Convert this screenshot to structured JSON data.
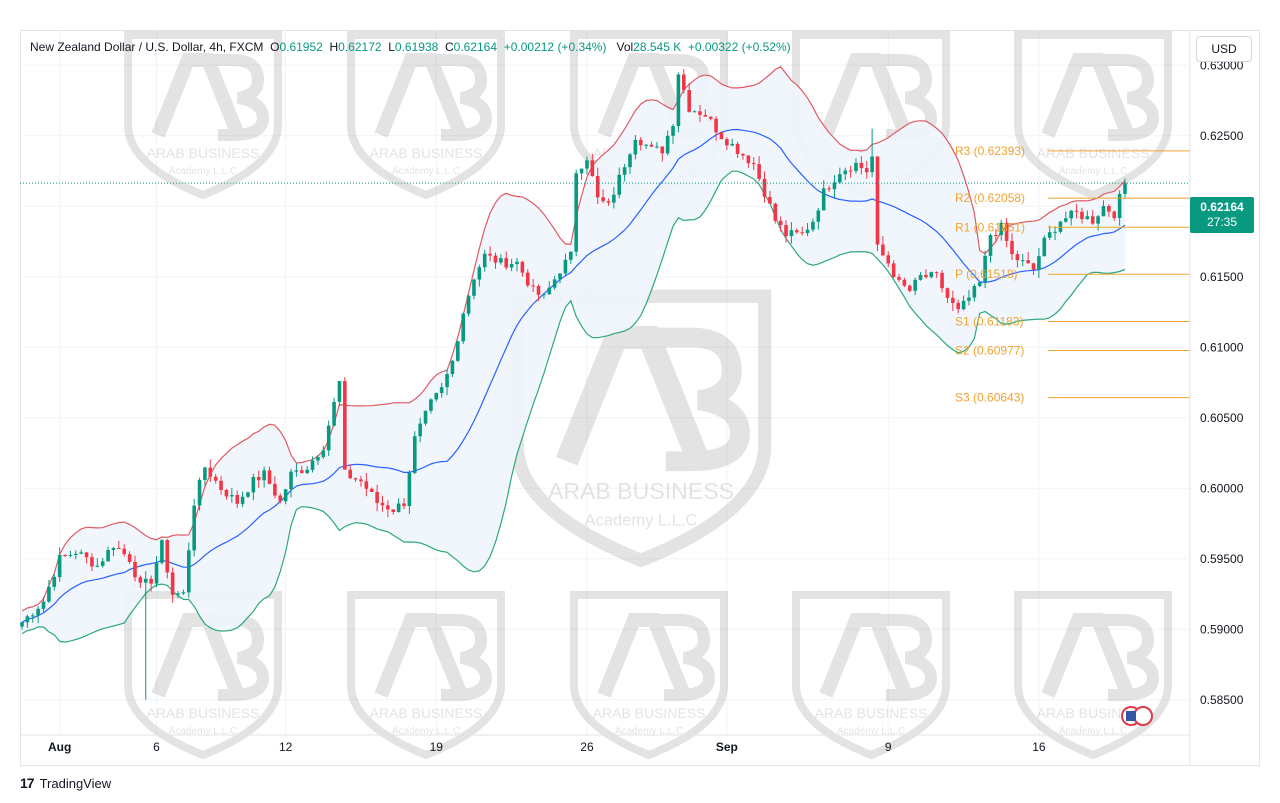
{
  "header": {
    "symbol": "New Zealand Dollar / U.S. Dollar, 4h, FXCM",
    "open_label": "O",
    "open": "0.61952",
    "high_label": "H",
    "high": "0.62172",
    "low_label": "L",
    "low": "0.61938",
    "close_label": "C",
    "close": "0.62164",
    "change": "+0.00212 (+0.34%)",
    "vol_label": "Vol",
    "vol": "28.545 K",
    "vol_change": "+0.00322 (+0.52%)"
  },
  "currency_button": "USD",
  "price_tag": {
    "price": "0.62164",
    "countdown": "27:35"
  },
  "footer": {
    "brand": "TradingView"
  },
  "watermark": {
    "line1": "ARAB BUSINESS",
    "line2": "Academy L.L.C"
  },
  "colors": {
    "up": "#089981",
    "down": "#f23645",
    "upper_band": "#e05a63",
    "lower_band": "#2ea87a",
    "basis": "#2962ff",
    "pivot": "#f0a330",
    "band_fill": "#eef5fc"
  },
  "chart_data": {
    "type": "candlestick",
    "timeframe": "4h",
    "ylim": [
      0.5825,
      0.6325
    ],
    "x_ticks": [
      {
        "label": "Aug",
        "i": 7
      },
      {
        "label": "6",
        "i": 25
      },
      {
        "label": "12",
        "i": 49
      },
      {
        "label": "19",
        "i": 77
      },
      {
        "label": "26",
        "i": 105
      },
      {
        "label": "Sep",
        "i": 131
      },
      {
        "label": "9",
        "i": 161
      },
      {
        "label": "16",
        "i": 189
      }
    ],
    "y_ticks": [
      "0.63000",
      "0.62500",
      "0.62000",
      "0.61500",
      "0.61000",
      "0.60500",
      "0.60000",
      "0.59500",
      "0.59000",
      "0.58500"
    ],
    "pivots": [
      {
        "label": "R3",
        "value": 0.62393,
        "text": "R3 (0.62393)"
      },
      {
        "label": "R2",
        "value": 0.62058,
        "text": "R2 (0.62058)"
      },
      {
        "label": "R1",
        "value": 0.61851,
        "text": "R1 (0.61851)"
      },
      {
        "label": "P",
        "value": 0.61518,
        "text": "P (0.61518)"
      },
      {
        "label": "S1",
        "value": 0.61183,
        "text": "S1 (0.61183)"
      },
      {
        "label": "S2",
        "value": 0.60977,
        "text": "S2 (0.60977)"
      },
      {
        "label": "S3",
        "value": 0.60643,
        "text": "S3 (0.60643)"
      }
    ],
    "current_price": 0.62164,
    "anchors": [
      [
        0,
        0.5905
      ],
      [
        4,
        0.592
      ],
      [
        7,
        0.595
      ],
      [
        10,
        0.5955
      ],
      [
        14,
        0.5945
      ],
      [
        17,
        0.596
      ],
      [
        20,
        0.595
      ],
      [
        22,
        0.593
      ],
      [
        24,
        0.5935
      ],
      [
        26,
        0.596
      ],
      [
        28,
        0.5925
      ],
      [
        30,
        0.5925
      ],
      [
        32,
        0.599
      ],
      [
        34,
        0.6015
      ],
      [
        37,
        0.6
      ],
      [
        40,
        0.599
      ],
      [
        43,
        0.6005
      ],
      [
        45,
        0.601
      ],
      [
        48,
        0.599
      ],
      [
        50,
        0.601
      ],
      [
        53,
        0.6015
      ],
      [
        56,
        0.603
      ],
      [
        58,
        0.606
      ],
      [
        59,
        0.6075
      ],
      [
        60,
        0.601
      ],
      [
        63,
        0.6005
      ],
      [
        66,
        0.599
      ],
      [
        69,
        0.5985
      ],
      [
        71,
        0.599
      ],
      [
        73,
        0.6035
      ],
      [
        76,
        0.606
      ],
      [
        78,
        0.607
      ],
      [
        80,
        0.609
      ],
      [
        82,
        0.6125
      ],
      [
        84,
        0.615
      ],
      [
        86,
        0.6165
      ],
      [
        89,
        0.616
      ],
      [
        92,
        0.616
      ],
      [
        95,
        0.614
      ],
      [
        97,
        0.6135
      ],
      [
        100,
        0.6155
      ],
      [
        102,
        0.6165
      ],
      [
        103,
        0.6225
      ],
      [
        105,
        0.6235
      ],
      [
        107,
        0.6205
      ],
      [
        109,
        0.62
      ],
      [
        111,
        0.622
      ],
      [
        114,
        0.625
      ],
      [
        117,
        0.624
      ],
      [
        119,
        0.624
      ],
      [
        121,
        0.626
      ],
      [
        122,
        0.6295
      ],
      [
        124,
        0.627
      ],
      [
        127,
        0.6265
      ],
      [
        130,
        0.625
      ],
      [
        133,
        0.624
      ],
      [
        136,
        0.623
      ],
      [
        138,
        0.621
      ],
      [
        140,
        0.619
      ],
      [
        142,
        0.618
      ],
      [
        145,
        0.618
      ],
      [
        147,
        0.619
      ],
      [
        149,
        0.621
      ],
      [
        152,
        0.6225
      ],
      [
        155,
        0.623
      ],
      [
        157,
        0.6225
      ],
      [
        158,
        0.6235
      ],
      [
        159,
        0.617
      ],
      [
        161,
        0.616
      ],
      [
        163,
        0.6145
      ],
      [
        165,
        0.614
      ],
      [
        167,
        0.615
      ],
      [
        170,
        0.615
      ],
      [
        172,
        0.6135
      ],
      [
        174,
        0.6125
      ],
      [
        176,
        0.6135
      ],
      [
        178,
        0.6145
      ],
      [
        180,
        0.618
      ],
      [
        182,
        0.6185
      ],
      [
        184,
        0.6165
      ],
      [
        186,
        0.616
      ],
      [
        188,
        0.6155
      ],
      [
        190,
        0.6175
      ],
      [
        193,
        0.619
      ],
      [
        196,
        0.6195
      ],
      [
        199,
        0.619
      ],
      [
        201,
        0.62
      ],
      [
        203,
        0.6195
      ],
      [
        205,
        0.6216
      ]
    ]
  }
}
